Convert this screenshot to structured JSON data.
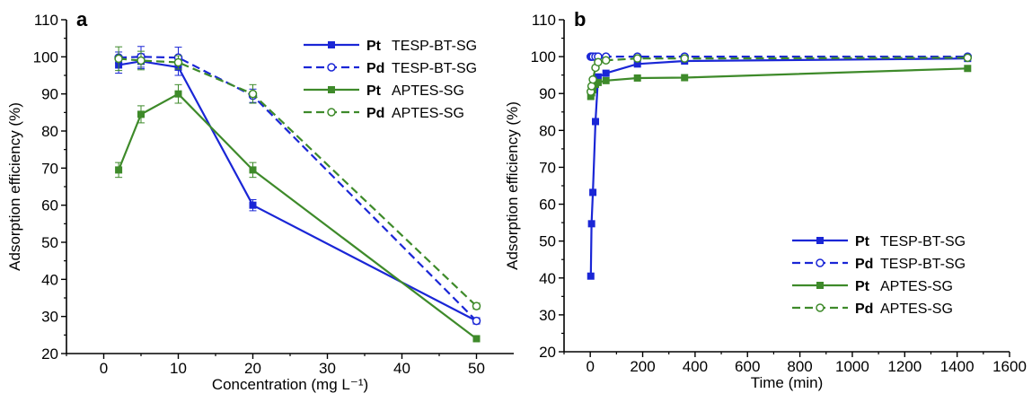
{
  "colors": {
    "blue": "#1a26d6",
    "green": "#3e8a2a",
    "axis": "#000000"
  },
  "chart_data": [
    {
      "type": "line",
      "panel_label": "a",
      "xlabel": "Concentration (mg L⁻¹)",
      "ylabel": "Adsorption efficiency (%)",
      "xlim": [
        -5,
        55
      ],
      "ylim": [
        20,
        110
      ],
      "xticks": [
        0,
        10,
        20,
        30,
        40,
        50
      ],
      "yticks": [
        20,
        30,
        40,
        50,
        60,
        70,
        80,
        90,
        100,
        110
      ],
      "grid": false,
      "legend_position": "top-right",
      "series": [
        {
          "metal": "Pt",
          "name": "TESP-BT-SG",
          "color": "#1a26d6",
          "dash": false,
          "marker": "filled-square",
          "x": [
            2,
            5,
            10,
            20,
            50
          ],
          "y": [
            97.8,
            98.8,
            97.2,
            60.0,
            28.8
          ],
          "err": [
            2.2,
            2.0,
            2.2,
            1.5,
            0.8
          ]
        },
        {
          "metal": "Pd",
          "name": "TESP-BT-SG",
          "color": "#1a26d6",
          "dash": true,
          "marker": "open-circle",
          "x": [
            2,
            5,
            10,
            20,
            50
          ],
          "y": [
            99.8,
            100.0,
            99.8,
            89.5,
            28.8
          ],
          "err": [
            1.5,
            2.8,
            2.8,
            1.8,
            0.8
          ]
        },
        {
          "metal": "Pt",
          "name": "APTES-SG",
          "color": "#3e8a2a",
          "dash": false,
          "marker": "filled-square",
          "x": [
            2,
            5,
            10,
            20,
            50
          ],
          "y": [
            69.5,
            84.5,
            90.0,
            69.5,
            24.0
          ],
          "err": [
            2.0,
            2.3,
            2.5,
            2.0,
            0.6
          ]
        },
        {
          "metal": "Pd",
          "name": "APTES-SG",
          "color": "#3e8a2a",
          "dash": true,
          "marker": "open-circle",
          "x": [
            2,
            5,
            10,
            20,
            50
          ],
          "y": [
            99.5,
            99.0,
            98.5,
            90.0,
            32.8
          ],
          "err": [
            3.2,
            2.5,
            1.8,
            2.5,
            0.8
          ]
        }
      ]
    },
    {
      "type": "line",
      "panel_label": "b",
      "xlabel": "Time (min)",
      "ylabel": "Adsorption efficiency (%)",
      "xlim": [
        -100,
        1600
      ],
      "ylim": [
        20,
        110
      ],
      "xticks": [
        0,
        200,
        400,
        600,
        800,
        1000,
        1200,
        1400,
        1600
      ],
      "yticks": [
        20,
        30,
        40,
        50,
        60,
        70,
        80,
        90,
        100,
        110
      ],
      "grid": false,
      "legend_position": "bottom-right",
      "series": [
        {
          "metal": "Pt",
          "name": "TESP-BT-SG",
          "color": "#1a26d6",
          "dash": false,
          "marker": "filled-square",
          "x": [
            2,
            5,
            10,
            20,
            30,
            60,
            180,
            360,
            1440
          ],
          "y": [
            40.5,
            54.7,
            63.2,
            82.4,
            94.5,
            95.5,
            98.0,
            98.8,
            99.5
          ]
        },
        {
          "metal": "Pd",
          "name": "TESP-BT-SG",
          "color": "#1a26d6",
          "dash": true,
          "marker": "open-circle",
          "x": [
            2,
            5,
            10,
            20,
            30,
            60,
            180,
            360,
            1440
          ],
          "y": [
            100.0,
            100.0,
            100.0,
            100.0,
            100.0,
            100.0,
            100.0,
            100.0,
            100.0
          ]
        },
        {
          "metal": "Pt",
          "name": "APTES-SG",
          "color": "#3e8a2a",
          "dash": false,
          "marker": "filled-square",
          "x": [
            2,
            5,
            10,
            20,
            30,
            60,
            180,
            360,
            1440
          ],
          "y": [
            89.2,
            90.2,
            91.0,
            92.5,
            93.0,
            93.5,
            94.2,
            94.3,
            96.8
          ]
        },
        {
          "metal": "Pd",
          "name": "APTES-SG",
          "color": "#3e8a2a",
          "dash": true,
          "marker": "open-circle",
          "x": [
            2,
            5,
            10,
            20,
            30,
            60,
            180,
            360,
            1440
          ],
          "y": [
            90.5,
            92.0,
            93.8,
            97.0,
            98.5,
            99.0,
            99.5,
            99.5,
            99.7
          ]
        }
      ]
    }
  ]
}
